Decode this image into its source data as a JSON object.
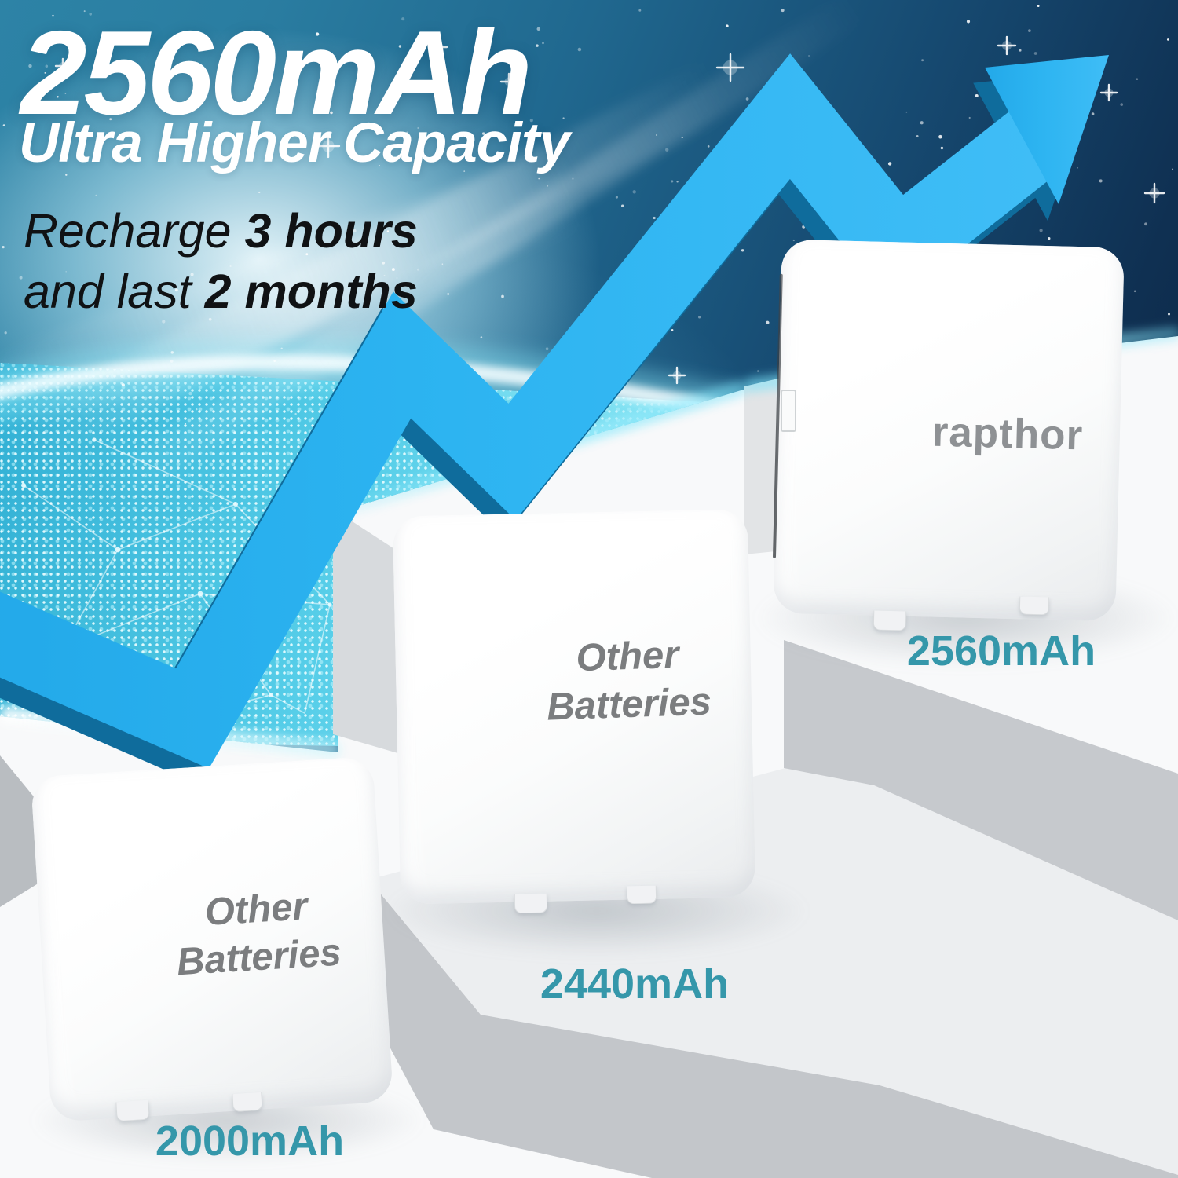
{
  "header": {
    "capacity_title": "2560mAh",
    "subtitle": "Ultra Higher Capacity",
    "tagline": {
      "line1_normal": "Recharge ",
      "line1_bold": "3 hours",
      "line2_normal": "and last ",
      "line2_bold": "2 months"
    }
  },
  "comparison": {
    "batteries": [
      {
        "label_line1": "Other",
        "label_line2": "Batteries",
        "capacity": "2000mAh"
      },
      {
        "label_line1": "Other",
        "label_line2": "Batteries",
        "capacity": "2440mAh"
      },
      {
        "brand": "rapthor",
        "capacity": "2560mAh"
      }
    ]
  },
  "colors": {
    "arrow_blue": "#2ab1ef",
    "arrow_edge_dark": "#0f6c9c",
    "capacity_label_teal": "#3597aa",
    "cube_label_gray": "#7b7d7f",
    "sky_navy": "#0a1d36",
    "sky_teal": "#2d83a6",
    "earth_cyan": "#55cde8"
  },
  "icons": {
    "arrow": "growth-arrow-icon",
    "earth": "earth-network-globe",
    "stars": "starfield"
  }
}
